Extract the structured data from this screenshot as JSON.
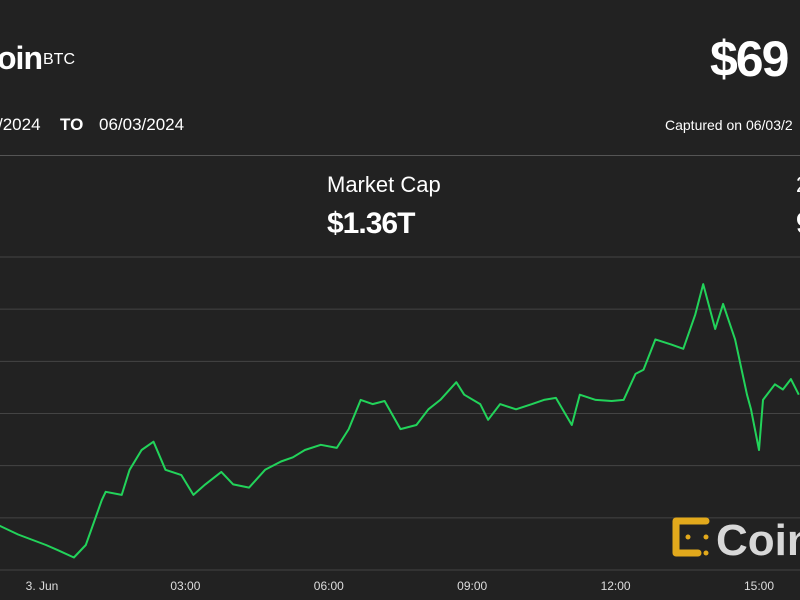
{
  "header": {
    "asset_name": "oin",
    "symbol": "BTC",
    "price": "$69"
  },
  "dates": {
    "from": "/2024",
    "to_label": "TO",
    "to": "06/03/2024",
    "captured": "Captured on 06/03/2"
  },
  "stats": {
    "market_cap_label": "Market Cap",
    "market_cap_value": "$1.36T",
    "right_label": "2",
    "right_value": "9"
  },
  "watermark": "Coin",
  "colors": {
    "background": "#222222",
    "line": "#22d35a",
    "grid": "#444444",
    "logo": "#e2a91c"
  },
  "chart_data": {
    "type": "line",
    "title": "",
    "xlabel": "",
    "ylabel": "",
    "grid": true,
    "x_ticks": [
      "3. Jun",
      "03:00",
      "06:00",
      "09:00",
      "12:00",
      "15:00"
    ],
    "ylim": [
      67500,
      70500
    ],
    "series": [
      {
        "values": [
          [
            "06-02 23:05",
            67930
          ],
          [
            "06-02 23:30",
            67840
          ],
          [
            "06-03 00:05",
            67740
          ],
          [
            "06-03 00:20",
            67690
          ],
          [
            "06-03 00:40",
            67620
          ],
          [
            "06-03 00:55",
            67740
          ],
          [
            "06-03 01:15",
            68170
          ],
          [
            "06-03 01:20",
            68250
          ],
          [
            "06-03 01:40",
            68220
          ],
          [
            "06-03 01:50",
            68460
          ],
          [
            "06-03 02:05",
            68650
          ],
          [
            "06-03 02:20",
            68730
          ],
          [
            "06-03 02:35",
            68460
          ],
          [
            "06-03 02:55",
            68410
          ],
          [
            "06-03 03:10",
            68220
          ],
          [
            "06-03 03:25",
            68320
          ],
          [
            "06-03 03:45",
            68440
          ],
          [
            "06-03 04:00",
            68320
          ],
          [
            "06-03 04:20",
            68290
          ],
          [
            "06-03 04:40",
            68460
          ],
          [
            "06-03 05:00",
            68540
          ],
          [
            "06-03 05:15",
            68580
          ],
          [
            "06-03 05:30",
            68650
          ],
          [
            "06-03 05:50",
            68700
          ],
          [
            "06-03 06:10",
            68670
          ],
          [
            "06-03 06:25",
            68850
          ],
          [
            "06-03 06:40",
            69130
          ],
          [
            "06-03 06:55",
            69090
          ],
          [
            "06-03 07:10",
            69120
          ],
          [
            "06-03 07:30",
            68850
          ],
          [
            "06-03 07:50",
            68890
          ],
          [
            "06-03 08:05",
            69040
          ],
          [
            "06-03 08:20",
            69130
          ],
          [
            "06-03 08:40",
            69300
          ],
          [
            "06-03 08:50",
            69180
          ],
          [
            "06-03 09:10",
            69090
          ],
          [
            "06-03 09:20",
            68940
          ],
          [
            "06-03 09:35",
            69090
          ],
          [
            "06-03 09:55",
            69040
          ],
          [
            "06-03 10:15",
            69090
          ],
          [
            "06-03 10:30",
            69130
          ],
          [
            "06-03 10:45",
            69150
          ],
          [
            "06-03 11:05",
            68890
          ],
          [
            "06-03 11:15",
            69180
          ],
          [
            "06-03 11:35",
            69130
          ],
          [
            "06-03 11:55",
            69120
          ],
          [
            "06-03 12:10",
            69130
          ],
          [
            "06-03 12:25",
            69380
          ],
          [
            "06-03 12:35",
            69420
          ],
          [
            "06-03 12:50",
            69710
          ],
          [
            "06-03 13:10",
            69660
          ],
          [
            "06-03 13:25",
            69620
          ],
          [
            "06-03 13:40",
            69950
          ],
          [
            "06-03 13:50",
            70240
          ],
          [
            "06-03 14:05",
            69810
          ],
          [
            "06-03 14:15",
            70050
          ],
          [
            "06-03 14:30",
            69710
          ],
          [
            "06-03 14:45",
            69180
          ],
          [
            "06-03 14:50",
            69040
          ],
          [
            "06-03 15:00",
            68650
          ],
          [
            "06-03 15:05",
            69130
          ],
          [
            "06-03 15:20",
            69280
          ],
          [
            "06-03 15:30",
            69230
          ],
          [
            "06-03 15:40",
            69330
          ],
          [
            "06-03 15:50",
            69180
          ]
        ]
      }
    ]
  }
}
